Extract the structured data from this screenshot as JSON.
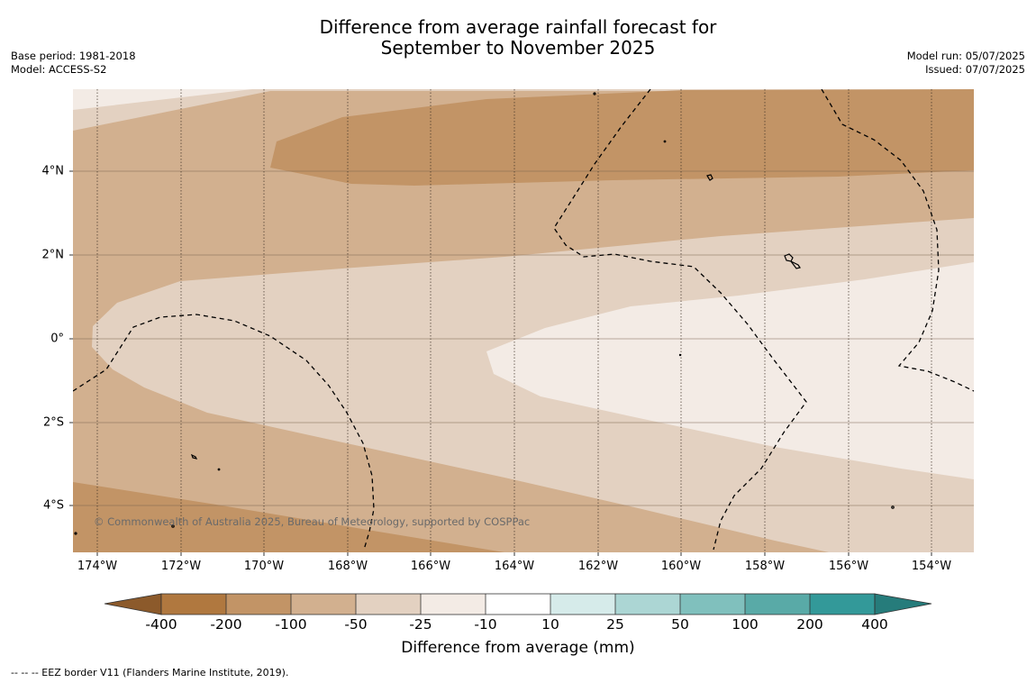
{
  "header": {
    "title_line1": "Difference from average rainfall forecast for",
    "title_line2": "September to November 2025",
    "base_period": "Base period: 1981-2018",
    "model": "Model: ACCESS-S2",
    "model_run": "Model run: 05/07/2025",
    "issued": "Issued: 07/07/2025"
  },
  "map": {
    "lon_labels": [
      "174°W",
      "172°W",
      "170°W",
      "168°W",
      "166°W",
      "164°W",
      "162°W",
      "160°W",
      "158°W",
      "156°W",
      "154°W"
    ],
    "lat_labels": [
      "4°N",
      "2°N",
      "0°",
      "2°S",
      "4°S"
    ],
    "copyright": "© Commonwealth of Australia 2025, Bureau of Meteorology, supported by COSPPac"
  },
  "legend": {
    "title": "Difference from average (mm)",
    "tick_labels": [
      "-400",
      "-200",
      "-100",
      "-50",
      "-25",
      "-10",
      "10",
      "25",
      "50",
      "100",
      "200",
      "400"
    ],
    "colors": [
      "#8c5a2b",
      "#b0783f",
      "#c29466",
      "#d2b08f",
      "#e3d1c1",
      "#f3ebe5",
      "#ffffff",
      "#d6ebea",
      "#acd6d4",
      "#80c0bd",
      "#59aaa7",
      "#339999",
      "#267c7b"
    ]
  },
  "footnote": "--  --  -- EEZ border V11 (Flanders Marine Institute, 2019)."
}
